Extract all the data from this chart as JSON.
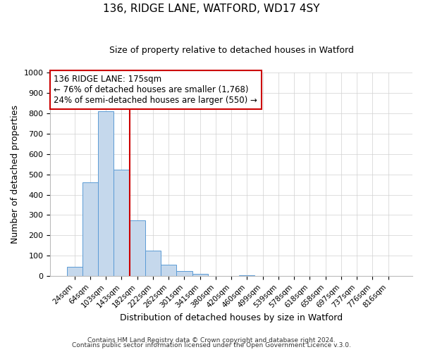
{
  "title": "136, RIDGE LANE, WATFORD, WD17 4SY",
  "subtitle": "Size of property relative to detached houses in Watford",
  "xlabel": "Distribution of detached houses by size in Watford",
  "ylabel": "Number of detached properties",
  "bar_labels": [
    "24sqm",
    "64sqm",
    "103sqm",
    "143sqm",
    "182sqm",
    "222sqm",
    "262sqm",
    "301sqm",
    "341sqm",
    "380sqm",
    "420sqm",
    "460sqm",
    "499sqm",
    "539sqm",
    "578sqm",
    "618sqm",
    "658sqm",
    "697sqm",
    "737sqm",
    "776sqm",
    "816sqm"
  ],
  "bar_values": [
    47,
    460,
    810,
    522,
    275,
    125,
    58,
    24,
    12,
    0,
    0,
    5,
    0,
    0,
    0,
    0,
    0,
    0,
    0,
    0,
    0
  ],
  "bar_color": "#c5d8ec",
  "bar_edgecolor": "#5b9bd5",
  "vline_color": "#cc0000",
  "annotation_title": "136 RIDGE LANE: 175sqm",
  "annotation_line1": "← 76% of detached houses are smaller (1,768)",
  "annotation_line2": "24% of semi-detached houses are larger (550) →",
  "annotation_box_edgecolor": "#cc0000",
  "ylim_max": 1000,
  "yticks": [
    0,
    100,
    200,
    300,
    400,
    500,
    600,
    700,
    800,
    900,
    1000
  ],
  "footer1": "Contains HM Land Registry data © Crown copyright and database right 2024.",
  "footer2": "Contains public sector information licensed under the Open Government Licence v.3.0.",
  "background_color": "#ffffff",
  "grid_color": "#d0d0d0",
  "font_family": "DejaVu Sans"
}
